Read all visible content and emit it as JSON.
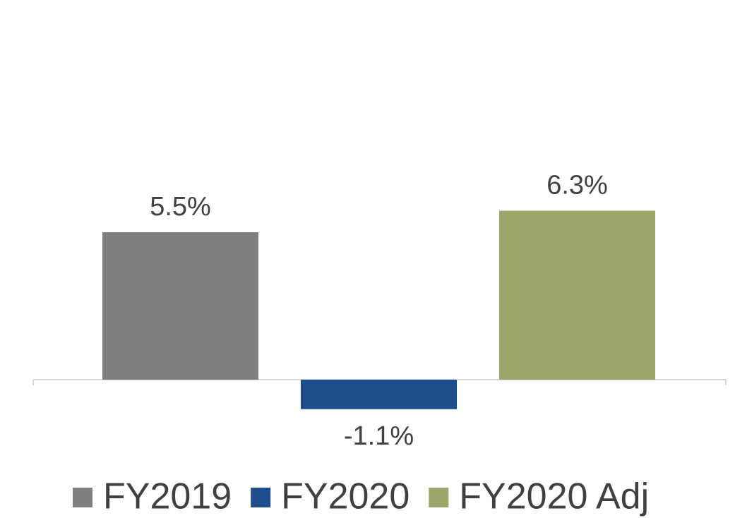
{
  "chart_data": {
    "type": "bar",
    "categories": [
      null
    ],
    "legend": "bottom",
    "series": [
      {
        "name": "FY2019",
        "color": "#7f7f7f",
        "values": [
          5.5
        ],
        "value_labels": [
          "5.5%"
        ]
      },
      {
        "name": "FY2020",
        "color": "#1f4e8f",
        "values": [
          -1.1
        ],
        "value_labels": [
          "-1.1%"
        ]
      },
      {
        "name": "FY2020 Adj",
        "color": "#9aa66b",
        "values": [
          6.3
        ],
        "value_labels": [
          "6.3%"
        ]
      }
    ]
  }
}
